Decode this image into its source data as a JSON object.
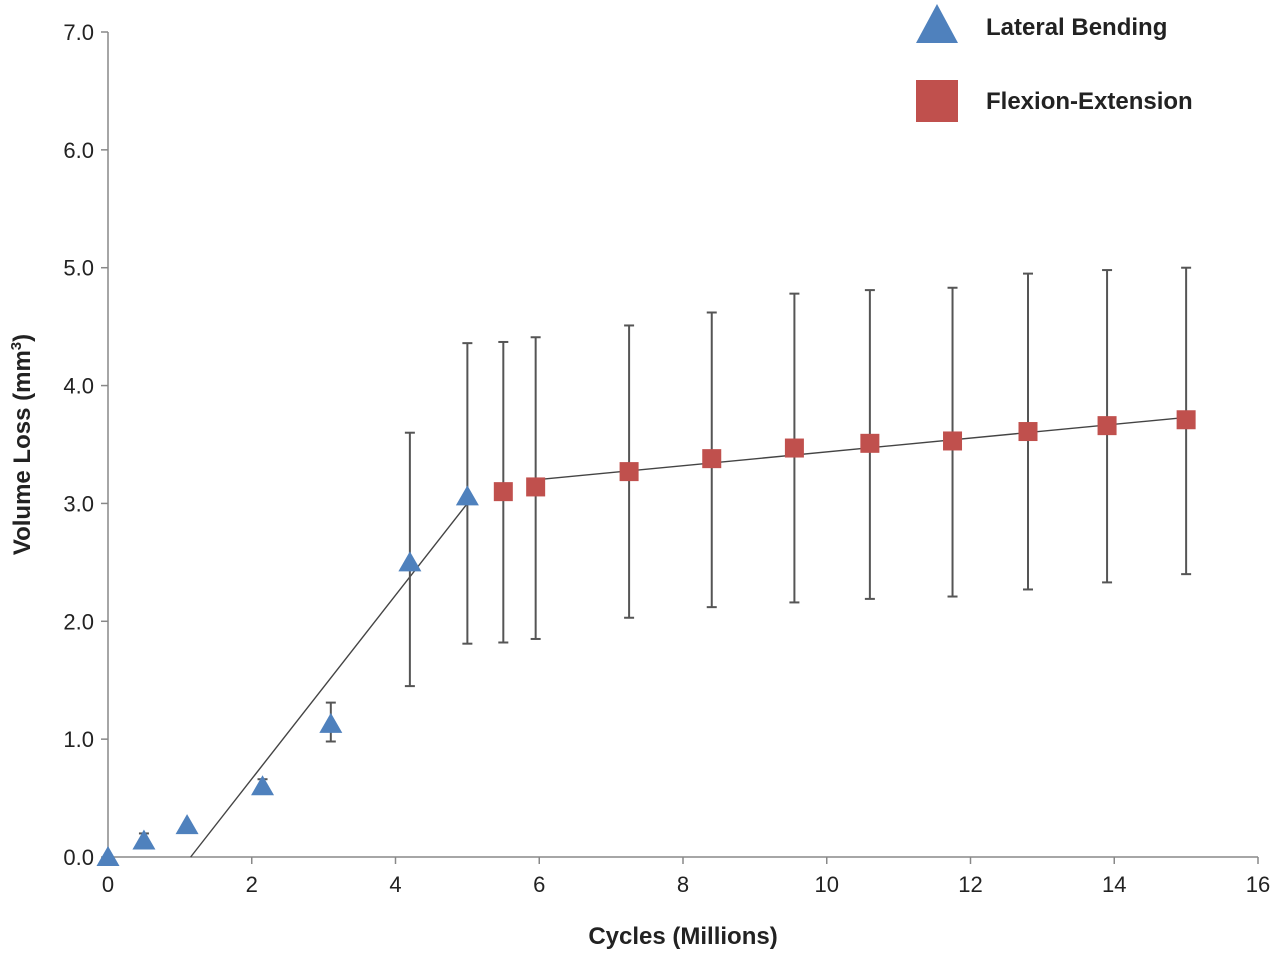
{
  "chart_data": {
    "type": "scatter",
    "title": "",
    "xlabel": "Cycles (Millions)",
    "ylabel_main": "Volume Loss (mm",
    "ylabel_sup": "3",
    "ylabel_close": ")",
    "xlim": [
      0,
      16
    ],
    "ylim": [
      0,
      7
    ],
    "x_ticks": [
      "0",
      "2",
      "4",
      "6",
      "8",
      "10",
      "12",
      "14",
      "16"
    ],
    "y_ticks": [
      "0.0",
      "1.0",
      "2.0",
      "3.0",
      "4.0",
      "5.0",
      "6.0",
      "7.0"
    ],
    "grid": false,
    "legend_position": "top-right",
    "series": [
      {
        "name": "Lateral Bending",
        "marker": "triangle",
        "color": "#4f81bd",
        "points": [
          {
            "x": 0.0,
            "y": 0.0,
            "err_lo": 0.0,
            "err_hi": 0.0
          },
          {
            "x": 0.5,
            "y": 0.14,
            "err_lo": 0.06,
            "err_hi": 0.06
          },
          {
            "x": 1.1,
            "y": 0.27,
            "err_lo": 0.0,
            "err_hi": 0.0
          },
          {
            "x": 2.15,
            "y": 0.6,
            "err_lo": 0.06,
            "err_hi": 0.06
          },
          {
            "x": 3.1,
            "y": 1.13,
            "err_lo": 0.15,
            "err_hi": 0.18
          },
          {
            "x": 4.2,
            "y": 2.5,
            "err_lo": 1.05,
            "err_hi": 1.1
          },
          {
            "x": 5.0,
            "y": 3.06,
            "err_lo": 1.25,
            "err_hi": 1.3
          }
        ],
        "trendline": {
          "x": [
            1.15,
            5.0
          ],
          "y": [
            0.0,
            3.0
          ]
        }
      },
      {
        "name": "Flexion-Extension",
        "marker": "square",
        "color": "#c0504d",
        "points": [
          {
            "x": 5.5,
            "y": 3.1,
            "err_lo": 1.28,
            "err_hi": 1.27
          },
          {
            "x": 5.95,
            "y": 3.14,
            "err_lo": 1.29,
            "err_hi": 1.27
          },
          {
            "x": 7.25,
            "y": 3.27,
            "err_lo": 1.24,
            "err_hi": 1.24
          },
          {
            "x": 8.4,
            "y": 3.38,
            "err_lo": 1.26,
            "err_hi": 1.24
          },
          {
            "x": 9.55,
            "y": 3.47,
            "err_lo": 1.31,
            "err_hi": 1.31
          },
          {
            "x": 10.6,
            "y": 3.51,
            "err_lo": 1.32,
            "err_hi": 1.3
          },
          {
            "x": 11.75,
            "y": 3.53,
            "err_lo": 1.32,
            "err_hi": 1.3
          },
          {
            "x": 12.8,
            "y": 3.61,
            "err_lo": 1.34,
            "err_hi": 1.34
          },
          {
            "x": 13.9,
            "y": 3.66,
            "err_lo": 1.33,
            "err_hi": 1.32
          },
          {
            "x": 15.0,
            "y": 3.71,
            "err_lo": 1.31,
            "err_hi": 1.29
          }
        ],
        "trendline": {
          "x": [
            5.95,
            15.0
          ],
          "y": [
            3.2,
            3.73
          ]
        }
      }
    ]
  }
}
